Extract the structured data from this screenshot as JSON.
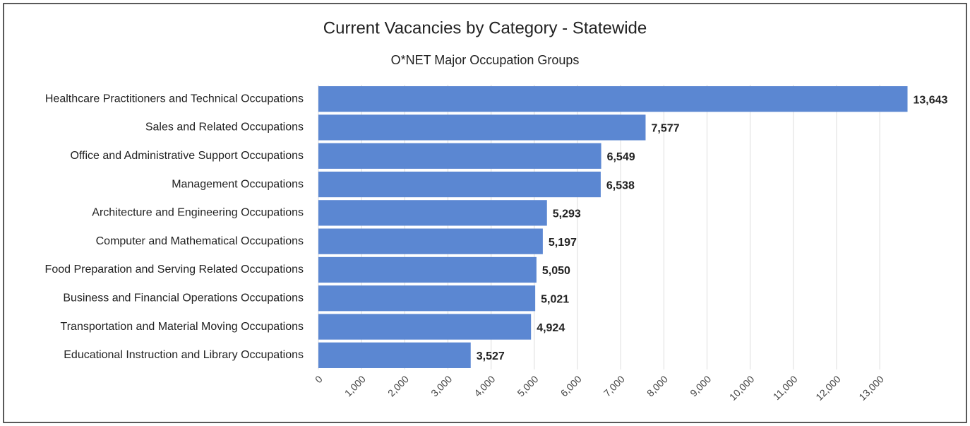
{
  "chart_data": {
    "type": "bar",
    "orientation": "horizontal",
    "title": "Current Vacancies by Category - Statewide",
    "subtitle": "O*NET Major Occupation Groups",
    "categories": [
      "Healthcare Practitioners and Technical Occupations",
      "Sales and Related Occupations",
      "Office and Administrative Support Occupations",
      "Management Occupations",
      "Architecture and Engineering Occupations",
      "Computer and Mathematical Occupations",
      "Food Preparation and Serving Related Occupations",
      "Business and Financial Operations Occupations",
      "Transportation and Material Moving Occupations",
      "Educational Instruction and Library Occupations"
    ],
    "values": [
      13643,
      7577,
      6549,
      6538,
      5293,
      5197,
      5050,
      5021,
      4924,
      3527
    ],
    "value_labels": [
      "13,643",
      "7,577",
      "6,549",
      "6,538",
      "5,293",
      "5,197",
      "5,050",
      "5,021",
      "4,924",
      "3,527"
    ],
    "color": "#5b87d2",
    "xlim": [
      0,
      13700
    ],
    "xticks": [
      0,
      {
        "value": 1000,
        "label": "1,000"
      },
      {
        "value": 2000,
        "label": "2,000"
      },
      {
        "value": 3000,
        "label": "3,000"
      },
      {
        "value": 4000,
        "label": "4,000"
      },
      {
        "value": 5000,
        "label": "5,000"
      },
      {
        "value": 6000,
        "label": "6,000"
      },
      {
        "value": 7000,
        "label": "7,000"
      },
      {
        "value": 8000,
        "label": "8,000"
      },
      {
        "value": 9000,
        "label": "9,000"
      },
      {
        "value": 10000,
        "label": "10,000"
      },
      {
        "value": 11000,
        "label": "11,000"
      },
      {
        "value": 12000,
        "label": "12,000"
      },
      {
        "value": 13000,
        "label": "13,000"
      }
    ],
    "grid": true
  }
}
